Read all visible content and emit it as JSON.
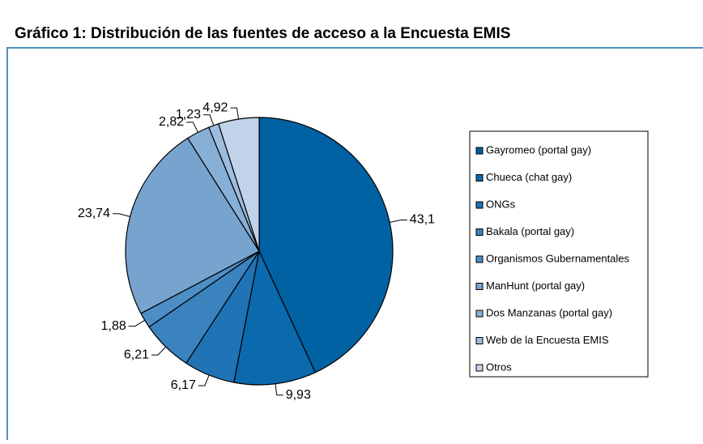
{
  "chart_data": {
    "type": "pie",
    "title": "Gráfico 1: Distribución de las fuentes de acceso a la Encuesta EMIS",
    "categories": [
      "Gayromeo (portal gay)",
      "Chueca (chat gay)",
      "ONGs",
      "Bakala (portal gay)",
      "Organismos Gubernamentales",
      "ManHunt (portal gay)",
      "Dos Manzanas (portal gay)",
      "Web de la Encuesta EMIS",
      "Otros"
    ],
    "values": [
      43.1,
      9.93,
      6.17,
      6.21,
      1.88,
      23.74,
      2.82,
      1.23,
      4.92
    ],
    "value_labels": [
      "43,1",
      "9,93",
      "6,17",
      "6,21",
      "1,88",
      "23,74",
      "2,82",
      "1,23",
      "4,92"
    ],
    "colors": [
      "#0061a3",
      "#0b69ae",
      "#2074b5",
      "#3a83bf",
      "#4e8ec6",
      "#77a3cf",
      "#88b0d6",
      "#9dbde0",
      "#c0d3eb"
    ],
    "legend": "right"
  }
}
